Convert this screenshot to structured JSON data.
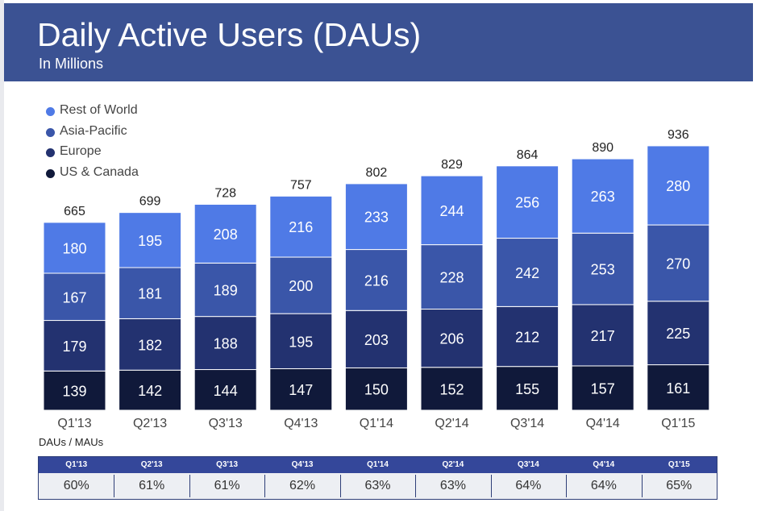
{
  "header": {
    "title": "Daily Active Users (DAUs)",
    "subtitle": "In Millions"
  },
  "colors": {
    "header_bg": "#3b5293",
    "rest_of_world": "#4f7ae6",
    "asia_pacific": "#3a56a9",
    "europe": "#233270",
    "us_canada": "#10193a"
  },
  "chart_data": {
    "type": "bar",
    "stacked": true,
    "title": "Daily Active Users (DAUs)",
    "subtitle": "In Millions",
    "categories": [
      "Q1'13",
      "Q2'13",
      "Q3'13",
      "Q4'13",
      "Q1'14",
      "Q2'14",
      "Q3'14",
      "Q4'14",
      "Q1'15"
    ],
    "series": [
      {
        "name": "US & Canada",
        "color": "#10193a",
        "values": [
          139,
          142,
          144,
          147,
          150,
          152,
          155,
          157,
          161
        ]
      },
      {
        "name": "Europe",
        "color": "#233270",
        "values": [
          179,
          182,
          188,
          195,
          203,
          206,
          212,
          217,
          225
        ]
      },
      {
        "name": "Asia-Pacific",
        "color": "#3a56a9",
        "values": [
          167,
          181,
          189,
          200,
          216,
          228,
          242,
          253,
          270
        ]
      },
      {
        "name": "Rest of World",
        "color": "#4f7ae6",
        "values": [
          180,
          195,
          208,
          216,
          233,
          244,
          256,
          263,
          280
        ]
      }
    ],
    "totals": [
      665,
      699,
      728,
      757,
      802,
      829,
      864,
      890,
      936
    ],
    "legend": [
      "Rest of World",
      "Asia-Pacific",
      "Europe",
      "US & Canada"
    ],
    "legend_position": "top-left",
    "grid": false,
    "ylim": [
      0,
      1000
    ]
  },
  "dau_mau": {
    "label": "DAUs / MAUs",
    "headers": [
      "Q1'13",
      "Q2'13",
      "Q3'13",
      "Q4'13",
      "Q1'14",
      "Q2'14",
      "Q3'14",
      "Q4'14",
      "Q1'15"
    ],
    "values": [
      "60%",
      "61%",
      "61%",
      "62%",
      "63%",
      "63%",
      "64%",
      "64%",
      "65%"
    ]
  }
}
